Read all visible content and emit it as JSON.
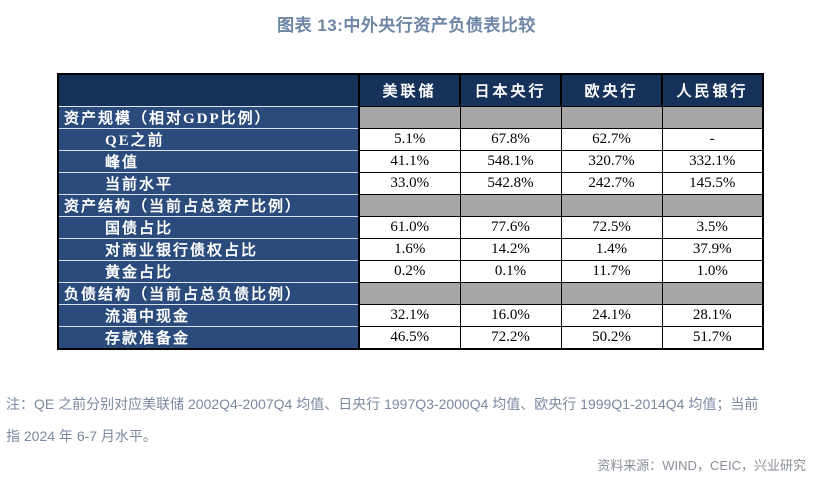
{
  "title": "图表 13:中外央行资产负债表比较",
  "table": {
    "corner": "",
    "column_headers": [
      "美联储",
      "日本央行",
      "欧央行",
      "人民银行"
    ],
    "rows": [
      {
        "type": "section",
        "label": "资产规模（相对GDP比例）",
        "values": [
          "",
          "",
          "",
          ""
        ]
      },
      {
        "type": "data",
        "label": "QE之前",
        "values": [
          "5.1%",
          "67.8%",
          "62.7%",
          "-"
        ]
      },
      {
        "type": "data",
        "label": "峰值",
        "values": [
          "41.1%",
          "548.1%",
          "320.7%",
          "332.1%"
        ]
      },
      {
        "type": "data",
        "label": "当前水平",
        "values": [
          "33.0%",
          "542.8%",
          "242.7%",
          "145.5%"
        ]
      },
      {
        "type": "section",
        "label": "资产结构（当前占总资产比例）",
        "values": [
          "",
          "",
          "",
          ""
        ]
      },
      {
        "type": "data",
        "label": "国债占比",
        "values": [
          "61.0%",
          "77.6%",
          "72.5%",
          "3.5%"
        ]
      },
      {
        "type": "data",
        "label": "对商业银行债权占比",
        "values": [
          "1.6%",
          "14.2%",
          "1.4%",
          "37.9%"
        ]
      },
      {
        "type": "data",
        "label": "黄金占比",
        "values": [
          "0.2%",
          "0.1%",
          "11.7%",
          "1.0%"
        ]
      },
      {
        "type": "section",
        "label": "负债结构（当前占总负债比例）",
        "values": [
          "",
          "",
          "",
          ""
        ]
      },
      {
        "type": "data",
        "label": "流通中现金",
        "values": [
          "32.1%",
          "16.0%",
          "24.1%",
          "28.1%"
        ]
      },
      {
        "type": "data",
        "label": "存款准备金",
        "values": [
          "46.5%",
          "72.2%",
          "50.2%",
          "51.7%"
        ]
      }
    ]
  },
  "notes": {
    "line1": "注：QE 之前分别对应美联储 2002Q4-2007Q4 均值、日央行 1997Q3-2000Q4 均值、欧央行 1999Q1-2014Q4 均值；当前",
    "line2": "指 2024 年 6-7 月水平。"
  },
  "source": "资料来源：WIND，CEIC，兴业研究",
  "colors": {
    "header_navy": "#16325a",
    "row_navy": "#2a4b7c",
    "section_gray": "#a6a6a6",
    "title_color": "#6e86a6",
    "note_color": "#7b8aa0",
    "source_color": "#8a8f97",
    "border_black": "#000000"
  },
  "chart_data": {
    "type": "table",
    "title": "图表 13:中外央行资产负债表比较",
    "columns": [
      "美联储",
      "日本央行",
      "欧央行",
      "人民银行"
    ],
    "unit": "percent",
    "sections": [
      {
        "name": "资产规模（相对GDP比例）",
        "rows": [
          {
            "label": "QE之前",
            "values_pct": [
              5.1,
              67.8,
              62.7,
              null
            ]
          },
          {
            "label": "峰值",
            "values_pct": [
              41.1,
              548.1,
              320.7,
              332.1
            ]
          },
          {
            "label": "当前水平",
            "values_pct": [
              33.0,
              542.8,
              242.7,
              145.5
            ]
          }
        ]
      },
      {
        "name": "资产结构（当前占总资产比例）",
        "rows": [
          {
            "label": "国债占比",
            "values_pct": [
              61.0,
              77.6,
              72.5,
              3.5
            ]
          },
          {
            "label": "对商业银行债权占比",
            "values_pct": [
              1.6,
              14.2,
              1.4,
              37.9
            ]
          },
          {
            "label": "黄金占比",
            "values_pct": [
              0.2,
              0.1,
              11.7,
              1.0
            ]
          }
        ]
      },
      {
        "name": "负债结构（当前占总负债比例）",
        "rows": [
          {
            "label": "流通中现金",
            "values_pct": [
              32.1,
              16.0,
              24.1,
              28.1
            ]
          },
          {
            "label": "存款准备金",
            "values_pct": [
              46.5,
              72.2,
              50.2,
              51.7
            ]
          }
        ]
      }
    ],
    "notes": "QE 之前分别对应美联储 2002Q4-2007Q4 均值、日央行 1997Q3-2000Q4 均值、欧央行 1999Q1-2014Q4 均值；当前指 2024 年 6-7 月水平。",
    "source": "WIND，CEIC，兴业研究"
  }
}
